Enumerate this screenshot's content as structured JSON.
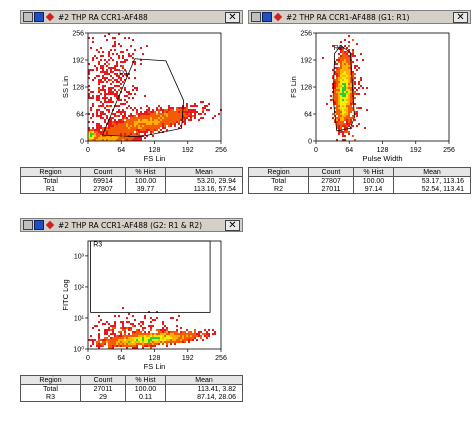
{
  "panels": [
    {
      "title": "#2 THP RA CCR1-AF488",
      "chart": {
        "type": "scatter",
        "xlabel": "FS Lin",
        "ylabel": "SS Lin",
        "xlim": [
          0,
          256
        ],
        "ylim": [
          0,
          256
        ],
        "x_ticks": [
          "0",
          "64",
          "128",
          "192",
          "256"
        ],
        "y_ticks": [
          "0",
          "64",
          "128",
          "192",
          "256"
        ],
        "y_scale": "linear",
        "region": {
          "name": "R1",
          "shape": "polygon",
          "points": [
            [
              28,
              14
            ],
            [
              90,
              195
            ],
            [
              150,
              190
            ],
            [
              184,
              96
            ],
            [
              180,
              30
            ],
            [
              100,
              10
            ]
          ],
          "label_at": [
            60,
            155
          ]
        },
        "populations": [
          {
            "cx": 118,
            "cy": 46,
            "sx": 42,
            "sy": 15,
            "rho": 0.72,
            "n": 2200
          },
          {
            "cx": 6,
            "cy": 14,
            "sx": 5,
            "sy": 5,
            "rho": 0.2,
            "n": 500
          },
          {
            "cx": 40,
            "cy": 6,
            "sx": 26,
            "sy": 6,
            "rho": 0.3,
            "n": 900
          },
          {
            "cx": 40,
            "cy": 120,
            "sx": 28,
            "sy": 70,
            "rho": 0.1,
            "n": 500
          }
        ]
      },
      "stats": {
        "headers": [
          "Region",
          "Count",
          "% Hist",
          "Mean"
        ],
        "rows": [
          [
            "Total",
            "69914",
            "100.00",
            "53.20, 29.94"
          ],
          [
            "R1",
            "27807",
            "39.77",
            "113.16, 57.54"
          ]
        ]
      }
    },
    {
      "title": "#2 THP RA CCR1-AF488  (G1: R1)",
      "chart": {
        "type": "scatter",
        "xlabel": "Pulse Width",
        "ylabel": "FS Lin",
        "xlim": [
          0,
          256
        ],
        "ylim": [
          0,
          256
        ],
        "x_ticks": [
          "0",
          "64",
          "128",
          "192",
          "256"
        ],
        "y_ticks": [
          "0",
          "64",
          "128",
          "192",
          "256"
        ],
        "y_scale": "linear",
        "region": {
          "name": "R2",
          "shape": "polygon",
          "points": [
            [
              36,
              208
            ],
            [
              48,
              226
            ],
            [
              66,
              210
            ],
            [
              74,
              56
            ],
            [
              66,
              30
            ],
            [
              40,
              24
            ],
            [
              33,
              100
            ]
          ],
          "label_at": [
            34,
            216
          ]
        },
        "populations": [
          {
            "cx": 54,
            "cy": 120,
            "sx": 7,
            "sy": 38,
            "rho": 0.15,
            "n": 2600
          },
          {
            "cx": 60,
            "cy": 110,
            "sx": 14,
            "sy": 55,
            "rho": 0.1,
            "n": 300
          }
        ]
      },
      "stats": {
        "headers": [
          "Region",
          "Count",
          "% Hist",
          "Mean"
        ],
        "rows": [
          [
            "Total",
            "27807",
            "100.00",
            "53.17, 113.16"
          ],
          [
            "R2",
            "27011",
            "97.14",
            "52.54, 113.41"
          ]
        ]
      }
    },
    {
      "title": "#2 THP RA CCR1-AF488  (G2: R1 & R2)",
      "chart": {
        "type": "scatter",
        "xlabel": "FS Lin",
        "ylabel": "FITC Log",
        "xlim": [
          0,
          256
        ],
        "ylim": [
          0,
          3.48
        ],
        "x_ticks": [
          "0",
          "64",
          "128",
          "192",
          "256"
        ],
        "y_ticks_log": [
          "10⁰",
          "10¹",
          "10²",
          "10³"
        ],
        "y_scale": "log",
        "region": {
          "name": "R3",
          "shape": "rect",
          "x": [
            5,
            235
          ],
          "y": [
            1.18,
            3.48
          ],
          "label_at": [
            10,
            3.3
          ]
        },
        "populations": [
          {
            "cx": 120,
            "cy": 0.32,
            "sx": 40,
            "sy": 0.1,
            "rho": 0.55,
            "n": 2400
          },
          {
            "cx": 82,
            "cy": 0.45,
            "sx": 40,
            "sy": 0.28,
            "rho": 0.2,
            "n": 300
          }
        ]
      },
      "stats": {
        "headers": [
          "Region",
          "Count",
          "% Hist",
          "Mean"
        ],
        "rows": [
          [
            "Total",
            "27011",
            "100.00",
            "113.41, 3.82"
          ],
          [
            "R3",
            "29",
            "0.11",
            "87.14, 28.06"
          ]
        ]
      }
    }
  ],
  "chart_data": [
    {
      "type": "scatter",
      "title": "#2 THP RA CCR1-AF488",
      "xlabel": "FS Lin",
      "ylabel": "SS Lin",
      "xlim": [
        0,
        256
      ],
      "ylim": [
        0,
        256
      ],
      "regions": [
        "R1"
      ],
      "grid": false
    },
    {
      "type": "scatter",
      "title": "#2 THP RA CCR1-AF488  (G1: R1)",
      "xlabel": "Pulse Width",
      "ylabel": "FS Lin",
      "xlim": [
        0,
        256
      ],
      "ylim": [
        0,
        256
      ],
      "regions": [
        "R2"
      ],
      "grid": false
    },
    {
      "type": "scatter",
      "title": "#2 THP RA CCR1-AF488  (G2: R1 & R2)",
      "xlabel": "FS Lin",
      "ylabel": "FITC Log",
      "xlim": [
        0,
        256
      ],
      "y_scale": "log",
      "regions": [
        "R3"
      ],
      "grid": false
    }
  ]
}
